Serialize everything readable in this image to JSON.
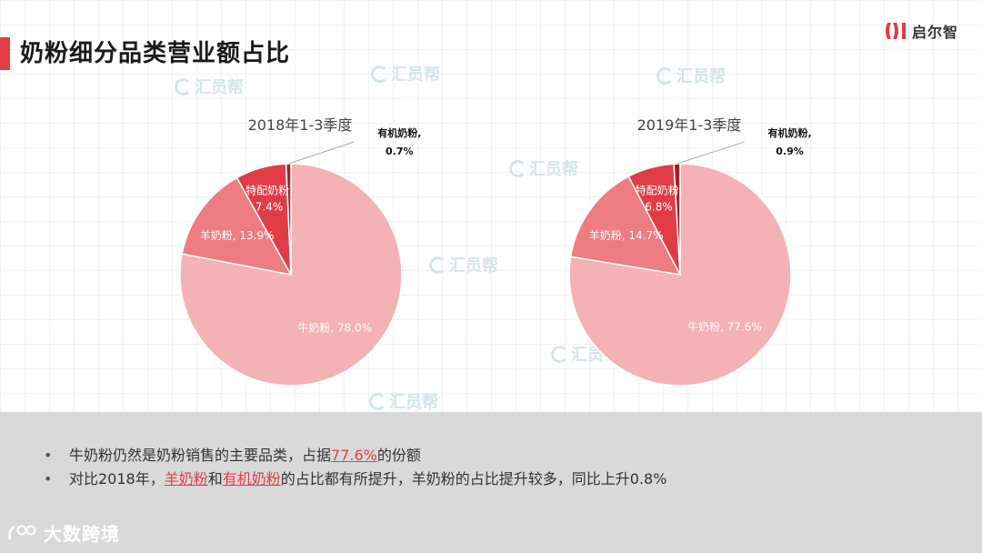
{
  "header": {
    "title": "奶粉细分品类营业额占比",
    "logo_text": "启尔智",
    "logo_color": "#e03c46"
  },
  "watermarks": {
    "text": "汇员帮"
  },
  "chart_data": [
    {
      "type": "pie",
      "title": "2018年1-3季度",
      "slices": [
        {
          "label": "牛奶粉",
          "value": 78.0,
          "display": "牛奶粉, 78.0%",
          "color": "#f4b2b4"
        },
        {
          "label": "羊奶粉",
          "value": 13.9,
          "display": "羊奶粉, 13.9%",
          "color": "#ee7c80"
        },
        {
          "label": "特配奶粉",
          "value": 7.4,
          "display": "特配奶粉,\n7.4%",
          "color": "#e03c46"
        },
        {
          "label": "有机奶粉",
          "value": 0.7,
          "display": "有机奶粉,\n0.7%",
          "color": "#a3202a"
        }
      ],
      "start_angle_deg": 0,
      "direction": "clockwise"
    },
    {
      "type": "pie",
      "title": "2019年1-3季度",
      "slices": [
        {
          "label": "牛奶粉",
          "value": 77.6,
          "display": "牛奶粉, 77.6%",
          "color": "#f4b2b4"
        },
        {
          "label": "羊奶粉",
          "value": 14.7,
          "display": "羊奶粉, 14.7%",
          "color": "#ee7c80"
        },
        {
          "label": "特配奶粉",
          "value": 6.8,
          "display": "特配奶粉,\n6.8%",
          "color": "#e03c46"
        },
        {
          "label": "有机奶粉",
          "value": 0.9,
          "display": "有机奶粉,\n0.9%",
          "color": "#a3202a"
        }
      ],
      "start_angle_deg": 0,
      "direction": "clockwise"
    }
  ],
  "notes": {
    "line1_prefix": "牛奶粉仍然是奶粉销售的主要品类，占据",
    "line1_highlight": "77.6%",
    "line1_suffix": "的份额",
    "line2_prefix": "对比2018年，",
    "line2_highlight1": "羊奶粉",
    "line2_mid": "和",
    "line2_highlight2": "有机奶粉",
    "line2_suffix": "的占比都有所提升，羊奶粉的占比提升较多，同比上升0.8%"
  },
  "footer_brand": {
    "text": "大数跨境"
  },
  "colors": {
    "accent": "#e03c46",
    "footer_bg": "#d9d9d9"
  }
}
